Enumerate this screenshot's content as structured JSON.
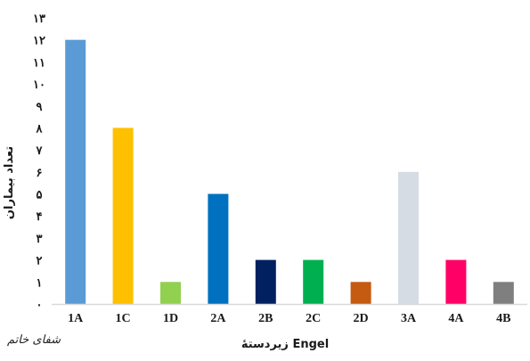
{
  "chart_data": {
    "type": "bar",
    "categories": [
      "1A",
      "1C",
      "1D",
      "2A",
      "2B",
      "2C",
      "2D",
      "3A",
      "4A",
      "4B"
    ],
    "values": [
      12,
      8,
      1,
      5,
      2,
      2,
      1,
      6,
      2,
      1
    ],
    "colors": [
      "#5b9bd5",
      "#ffc000",
      "#92d050",
      "#0070c0",
      "#002060",
      "#00b050",
      "#c55a11",
      "#d6dce4",
      "#ff0066",
      "#7f7f7f"
    ],
    "ylim": [
      0,
      13
    ],
    "yticks": [
      "۰",
      "۱",
      "۲",
      "۳",
      "۴",
      "۵",
      "۶",
      "۷",
      "۸",
      "۹",
      "۱۰",
      "۱۱",
      "۱۲",
      "۱۳"
    ],
    "xlabel": "زیردستهٔ Engel",
    "ylabel": "تعداد بیماران",
    "grid": false,
    "legend": "none"
  },
  "watermark": "شفای خاتم"
}
